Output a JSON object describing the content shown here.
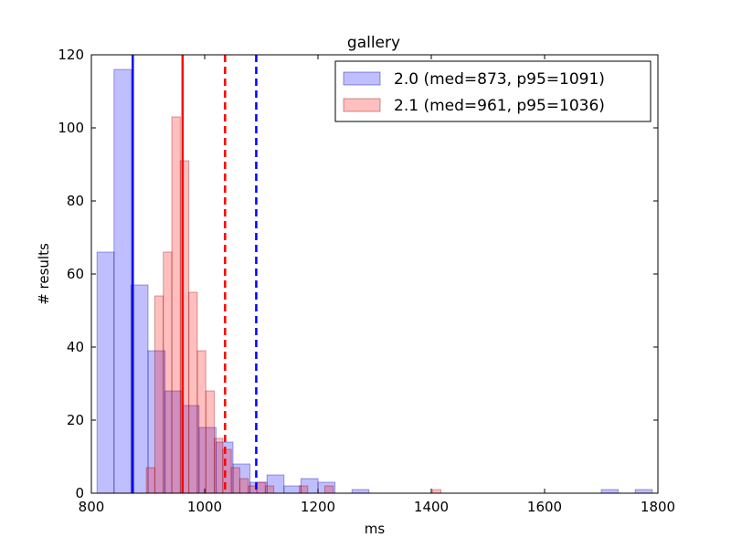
{
  "chart_data": {
    "type": "bar",
    "title": "gallery",
    "xlabel": "ms",
    "ylabel": "# results",
    "xlim": [
      800,
      1800
    ],
    "ylim": [
      0,
      120
    ],
    "xticks": [
      800,
      1000,
      1200,
      1400,
      1600,
      1800
    ],
    "yticks": [
      0,
      20,
      40,
      60,
      80,
      100,
      120
    ],
    "legend_position": "top-right",
    "series": [
      {
        "name": "2.0 (med=873, p95=1091)",
        "color": "#0000ff",
        "bin_width": 30,
        "bins": [
          {
            "x0": 810,
            "count": 66
          },
          {
            "x0": 840,
            "count": 116
          },
          {
            "x0": 870,
            "count": 57
          },
          {
            "x0": 900,
            "count": 39
          },
          {
            "x0": 930,
            "count": 28
          },
          {
            "x0": 960,
            "count": 24
          },
          {
            "x0": 990,
            "count": 18
          },
          {
            "x0": 1020,
            "count": 14
          },
          {
            "x0": 1050,
            "count": 8
          },
          {
            "x0": 1080,
            "count": 3
          },
          {
            "x0": 1110,
            "count": 5
          },
          {
            "x0": 1140,
            "count": 2
          },
          {
            "x0": 1170,
            "count": 4
          },
          {
            "x0": 1200,
            "count": 3
          },
          {
            "x0": 1230,
            "count": 0
          },
          {
            "x0": 1260,
            "count": 1
          },
          {
            "x0": 1700,
            "count": 1
          },
          {
            "x0": 1760,
            "count": 1
          }
        ],
        "median": 873,
        "p95": 1091
      },
      {
        "name": "2.1 (med=961, p95=1036)",
        "color": "#ff0000",
        "bin_width": 15,
        "bins": [
          {
            "x0": 897,
            "count": 7
          },
          {
            "x0": 912,
            "count": 54
          },
          {
            "x0": 927,
            "count": 66
          },
          {
            "x0": 942,
            "count": 103
          },
          {
            "x0": 957,
            "count": 91
          },
          {
            "x0": 972,
            "count": 55
          },
          {
            "x0": 987,
            "count": 39
          },
          {
            "x0": 1002,
            "count": 28
          },
          {
            "x0": 1017,
            "count": 15
          },
          {
            "x0": 1032,
            "count": 12
          },
          {
            "x0": 1047,
            "count": 7
          },
          {
            "x0": 1062,
            "count": 4
          },
          {
            "x0": 1077,
            "count": 2
          },
          {
            "x0": 1092,
            "count": 3
          },
          {
            "x0": 1107,
            "count": 2
          },
          {
            "x0": 1122,
            "count": 0
          },
          {
            "x0": 1137,
            "count": 0
          },
          {
            "x0": 1152,
            "count": 0
          },
          {
            "x0": 1167,
            "count": 2
          },
          {
            "x0": 1182,
            "count": 0
          },
          {
            "x0": 1197,
            "count": 0
          },
          {
            "x0": 1212,
            "count": 2
          },
          {
            "x0": 1402,
            "count": 1
          }
        ],
        "median": 961,
        "p95": 1036
      }
    ]
  }
}
